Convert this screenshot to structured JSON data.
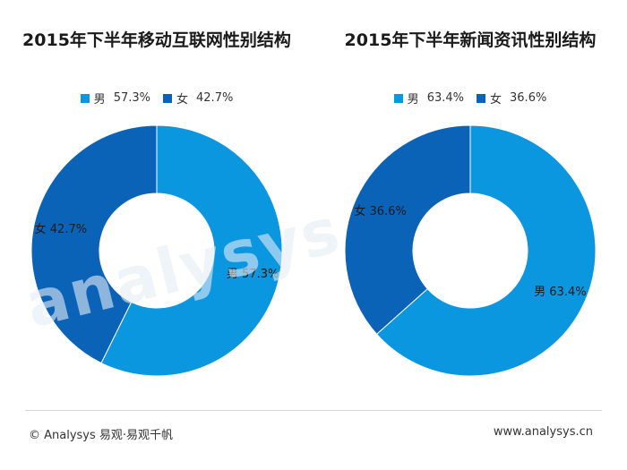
{
  "colors": {
    "male": "#0B96E0",
    "female": "#0B63B7"
  },
  "chart_data": [
    {
      "type": "pie",
      "title": "2015年下半年移动互联网性别结构",
      "slices": [
        {
          "name": "男",
          "value": 57.3,
          "label": "57.3%",
          "color": "#0B96E0"
        },
        {
          "name": "女",
          "value": 42.7,
          "label": "42.7%",
          "color": "#0B63B7"
        }
      ],
      "donut": true,
      "legend_position": "top"
    },
    {
      "type": "pie",
      "title": "2015年下半年新闻资讯性别结构",
      "slices": [
        {
          "name": "男",
          "value": 63.4,
          "label": "63.4%",
          "color": "#0B96E0"
        },
        {
          "name": "女",
          "value": 36.6,
          "label": "36.6%",
          "color": "#0B63B7"
        }
      ],
      "donut": true,
      "legend_position": "top"
    }
  ],
  "footer": {
    "copyright": "© Analysys 易观·易观千帆",
    "website": "www.analysys.cn"
  },
  "watermark": "analysys"
}
